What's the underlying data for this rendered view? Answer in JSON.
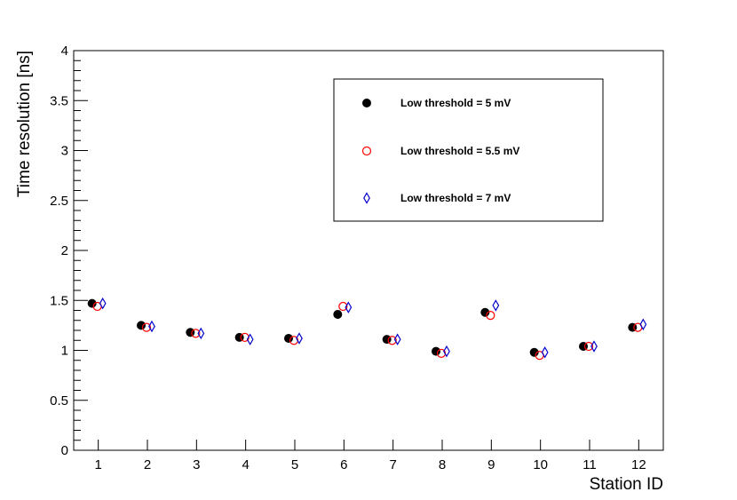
{
  "chart_data": {
    "type": "scatter",
    "xlabel": "Station ID",
    "ylabel": "Time resolution [ns]",
    "xlim": [
      0.5,
      12.5
    ],
    "ylim": [
      0,
      4
    ],
    "categories": [
      "1",
      "2",
      "3",
      "4",
      "5",
      "6",
      "7",
      "8",
      "9",
      "10",
      "11",
      "12"
    ],
    "y_ticks": [
      "0",
      "0.5",
      "1",
      "1.5",
      "2",
      "2.5",
      "3",
      "3.5",
      "4"
    ],
    "legend_position": "top-right",
    "grid": false,
    "series": [
      {
        "name": "Low threshold = 5 mV",
        "marker": "filled-circle",
        "color": "#000000",
        "values": [
          1.47,
          1.25,
          1.18,
          1.13,
          1.12,
          1.36,
          1.11,
          0.99,
          1.38,
          0.98,
          1.04,
          1.23
        ]
      },
      {
        "name": "Low threshold = 5.5 mV",
        "marker": "open-circle",
        "color": "#ff0000",
        "values": [
          1.44,
          1.23,
          1.17,
          1.13,
          1.1,
          1.44,
          1.1,
          0.97,
          1.35,
          0.95,
          1.04,
          1.23
        ]
      },
      {
        "name": "Low threshold = 7 mV",
        "marker": "open-diamond",
        "color": "#0000cc",
        "values": [
          1.47,
          1.24,
          1.17,
          1.11,
          1.12,
          1.43,
          1.11,
          0.99,
          1.45,
          0.98,
          1.04,
          1.26
        ]
      }
    ]
  }
}
